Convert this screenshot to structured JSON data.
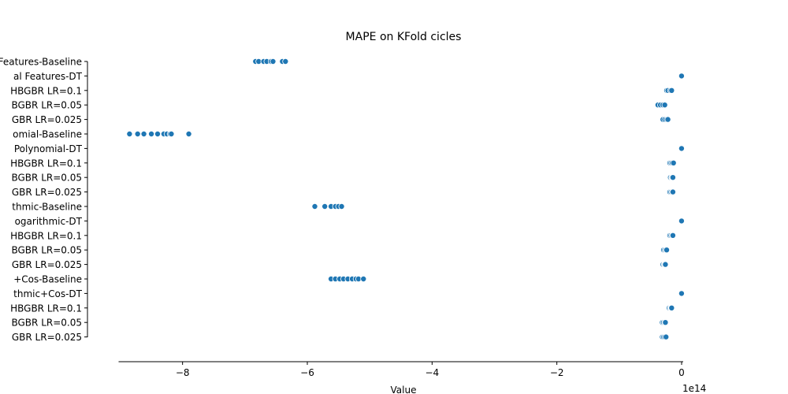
{
  "chart_data": {
    "type": "scatter",
    "title": "MAPE on KFold cicles",
    "xlabel": "Value",
    "ylabel": "",
    "x_offset_label": "1e14",
    "xlim": [
      -9.0,
      0.0
    ],
    "x_ticks": [
      -8,
      -6,
      -4,
      -2,
      0
    ],
    "x_tick_labels": [
      "−8",
      "−6",
      "−4",
      "−2",
      "0"
    ],
    "point_color": "#1f77b4",
    "categories": [
      "Features-Baseline",
      "al Features-DT",
      "HBGBR LR=0.1",
      "BGBR LR=0.05",
      "GBR LR=0.025",
      "omial-Baseline",
      "Polynomial-DT",
      "HBGBR LR=0.1",
      "BGBR LR=0.05",
      "GBR LR=0.025",
      "thmic-Baseline",
      "ogarithmic-DT",
      "HBGBR LR=0.1",
      "BGBR LR=0.05",
      "GBR LR=0.025",
      "+Cos-Baseline",
      "thmic+Cos-DT",
      "HBGBR LR=0.1",
      "BGBR LR=0.05",
      "GBR LR=0.025"
    ],
    "rows": [
      [
        -6.83,
        -6.78,
        -6.7,
        -6.65,
        -6.58,
        -6.55,
        -6.4,
        -6.35
      ],
      [
        -0.005,
        -0.003,
        -0.002,
        -0.001
      ],
      [
        -0.24,
        -0.22,
        -0.18,
        -0.16
      ],
      [
        -0.38,
        -0.34,
        -0.3,
        -0.27
      ],
      [
        -0.3,
        -0.27,
        -0.24,
        -0.22
      ],
      [
        -8.85,
        -8.72,
        -8.62,
        -8.5,
        -8.4,
        -8.3,
        -8.25,
        -8.2,
        -8.18,
        -7.9
      ],
      [
        -0.005,
        -0.003,
        -0.002,
        -0.001
      ],
      [
        -0.19,
        -0.17,
        -0.15,
        -0.13
      ],
      [
        -0.18,
        -0.16,
        -0.15,
        -0.14
      ],
      [
        -0.19,
        -0.17,
        -0.15,
        -0.14
      ],
      [
        -5.88,
        -5.72,
        -5.62,
        -5.55,
        -5.5,
        -5.45
      ],
      [
        -0.005,
        -0.003,
        -0.002,
        -0.001
      ],
      [
        -0.19,
        -0.17,
        -0.15,
        -0.14
      ],
      [
        -0.29,
        -0.27,
        -0.25,
        -0.24
      ],
      [
        -0.3,
        -0.28,
        -0.27,
        -0.26
      ],
      [
        -5.62,
        -5.55,
        -5.48,
        -5.42,
        -5.35,
        -5.28,
        -5.22,
        -5.18,
        -5.1
      ],
      [
        -0.005,
        -0.003,
        -0.002,
        -0.001
      ],
      [
        -0.2,
        -0.18,
        -0.17,
        -0.16
      ],
      [
        -0.31,
        -0.29,
        -0.27,
        -0.26
      ],
      [
        -0.31,
        -0.29,
        -0.27,
        -0.25
      ]
    ]
  }
}
